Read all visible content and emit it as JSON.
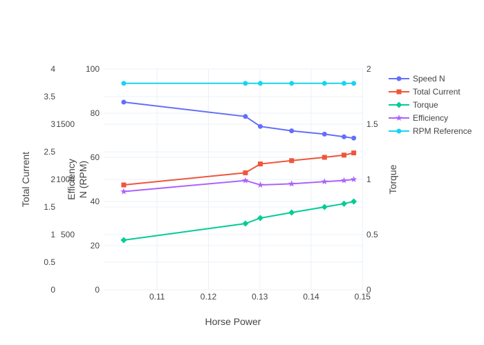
{
  "chart_data": {
    "type": "line",
    "xlabel": "Horse Power",
    "x": [
      0.1035,
      0.1272,
      0.1301,
      0.1362,
      0.1426,
      0.1464,
      0.1483
    ],
    "x_ticks": [
      "0.11",
      "0.12",
      "0.13",
      "0.14",
      "0.15"
    ],
    "x_tick_values": [
      0.11,
      0.12,
      0.13,
      0.14,
      0.15
    ],
    "xlim": [
      0.0996,
      0.1501
    ],
    "y_axes": {
      "efficiency": {
        "title": "Efficiency",
        "ylim": [
          0,
          100
        ],
        "ticks": [
          "0",
          "20",
          "40",
          "60",
          "80",
          "100"
        ],
        "tick_values": [
          0,
          20,
          40,
          60,
          80,
          100
        ]
      },
      "speed": {
        "title": "N (RPM)",
        "ticks": [
          "500",
          "1000",
          "1500"
        ],
        "tick_values": [
          500,
          1000,
          1500
        ],
        "ylim": [
          0,
          2000
        ]
      },
      "current": {
        "title": "Total Current",
        "ylim": [
          0,
          4
        ],
        "ticks": [
          "0",
          "0.5",
          "1",
          "1.5",
          "2",
          "2.5",
          "3",
          "3.5",
          "4"
        ],
        "tick_values": [
          0,
          0.5,
          1,
          1.5,
          2,
          2.5,
          3,
          3.5,
          4
        ]
      },
      "torque": {
        "title": "Torque",
        "ylim": [
          0,
          2
        ],
        "ticks": [
          "0",
          "0.5",
          "1",
          "1.5",
          "2"
        ],
        "tick_values": [
          0,
          0.5,
          1,
          1.5,
          2
        ]
      }
    },
    "series": [
      {
        "name": "Speed N",
        "axis": "efficiency",
        "color": "#636efa",
        "marker": "circle",
        "values": [
          85,
          78.5,
          74,
          72,
          70.5,
          69.3,
          68.7
        ]
      },
      {
        "name": "Total Current",
        "axis": "efficiency",
        "color": "#ef553b",
        "marker": "square",
        "values": [
          47.5,
          53,
          57,
          58.5,
          60,
          61,
          62
        ]
      },
      {
        "name": "Torque",
        "axis": "efficiency",
        "color": "#00cc96",
        "marker": "diamond",
        "values": [
          22.5,
          30,
          32.5,
          35,
          37.5,
          39,
          40
        ]
      },
      {
        "name": "Efficiency",
        "axis": "efficiency",
        "color": "#ab63fa",
        "marker": "star",
        "values": [
          44.5,
          49.5,
          47.5,
          48,
          49,
          49.5,
          50
        ]
      },
      {
        "name": "RPM Reference",
        "axis": "efficiency",
        "color": "#19d3f3",
        "marker": "circle",
        "values": [
          93.5,
          93.5,
          93.5,
          93.5,
          93.5,
          93.5,
          93.5
        ]
      }
    ],
    "legend_position": "top-right",
    "grid": true
  }
}
